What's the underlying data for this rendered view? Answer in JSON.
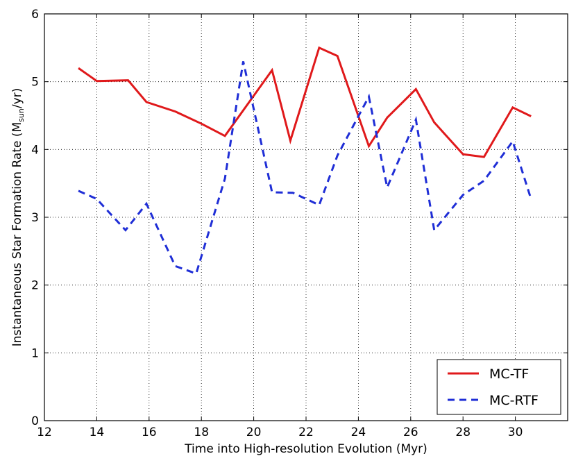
{
  "chart_data": {
    "type": "line",
    "xlabel": "Time into High-resolution Evolution (Myr)",
    "ylabel": "Instantaneous Star Formation Rate",
    "ylabel_unit": "(M",
    "ylabel_unit_sub": "sun",
    "ylabel_unit_tail": "/yr)",
    "xlim": [
      12,
      32
    ],
    "ylim": [
      0,
      6
    ],
    "xticks": [
      12,
      14,
      16,
      18,
      20,
      22,
      24,
      26,
      28,
      30
    ],
    "yticks": [
      0,
      1,
      2,
      3,
      4,
      5,
      6
    ],
    "grid": true,
    "legend_position": "lower-right",
    "series": [
      {
        "name": "MC-TF",
        "color": "#e0191b",
        "style": "solid",
        "x": [
          13.3,
          14.0,
          15.2,
          15.9,
          17.0,
          18.0,
          18.9,
          20.7,
          21.4,
          22.5,
          23.2,
          24.4,
          25.1,
          26.2,
          26.9,
          28.0,
          28.8,
          29.9,
          30.6
        ],
        "y": [
          5.2,
          5.01,
          5.02,
          4.7,
          4.56,
          4.38,
          4.2,
          5.17,
          4.13,
          5.5,
          5.38,
          4.05,
          4.47,
          4.89,
          4.4,
          3.93,
          3.89,
          4.62,
          4.49
        ]
      },
      {
        "name": "MC-RTF",
        "color": "#1f2ed6",
        "style": "dashed",
        "x": [
          13.3,
          14.0,
          15.1,
          15.9,
          17.0,
          17.8,
          18.9,
          19.6,
          20.7,
          21.5,
          22.5,
          23.2,
          24.4,
          25.1,
          26.2,
          26.9,
          28.0,
          28.8,
          29.9,
          30.6
        ],
        "y": [
          3.39,
          3.27,
          2.81,
          3.2,
          2.28,
          2.17,
          3.57,
          5.3,
          3.37,
          3.36,
          3.18,
          3.91,
          4.78,
          3.44,
          4.44,
          2.81,
          3.33,
          3.54,
          4.12,
          3.27
        ]
      }
    ]
  }
}
